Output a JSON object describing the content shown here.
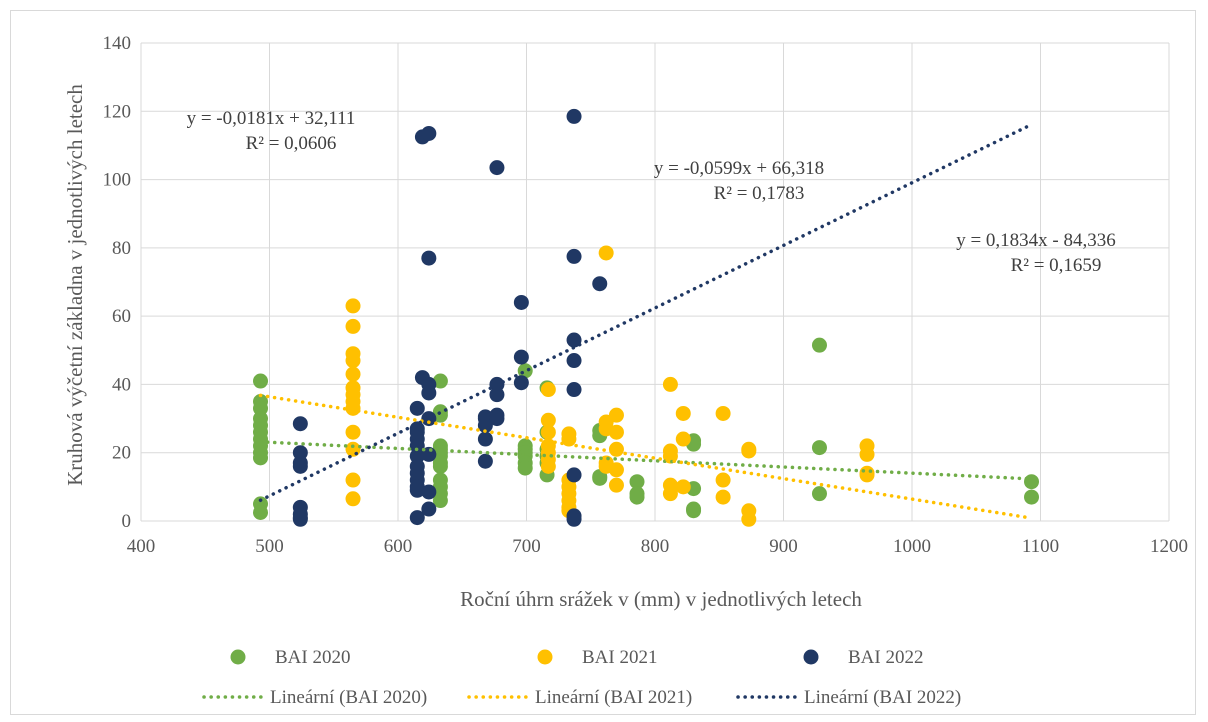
{
  "chart_data": {
    "type": "scatter",
    "title": "",
    "xlabel": "Roční úhrn srážek v (mm) v jednotlivých letech",
    "ylabel": "Kruhová výčetní základna v jednotlivých letech",
    "xlim": [
      400,
      1200
    ],
    "ylim": [
      0,
      140
    ],
    "x_ticks": [
      400,
      500,
      600,
      700,
      800,
      900,
      1000,
      1100,
      1200
    ],
    "y_ticks": [
      0,
      20,
      40,
      60,
      80,
      100,
      120,
      140
    ],
    "grid": "vertical and horizontal major gridlines",
    "legend_position": "bottom",
    "series": [
      {
        "name": "BAI 2020",
        "color": "#70ad47",
        "points": [
          [
            493,
            41
          ],
          [
            493,
            35
          ],
          [
            493,
            33
          ],
          [
            493,
            30
          ],
          [
            493,
            28
          ],
          [
            493,
            26
          ],
          [
            493,
            24
          ],
          [
            493,
            22
          ],
          [
            493,
            20
          ],
          [
            493,
            18.5
          ],
          [
            493,
            5
          ],
          [
            493,
            2.5
          ],
          [
            633,
            41
          ],
          [
            633,
            32
          ],
          [
            633,
            31
          ],
          [
            633,
            22
          ],
          [
            633,
            21
          ],
          [
            633,
            20
          ],
          [
            633,
            19
          ],
          [
            633,
            17
          ],
          [
            633,
            16
          ],
          [
            633,
            12
          ],
          [
            633,
            10
          ],
          [
            633,
            8
          ],
          [
            633,
            6
          ],
          [
            699,
            44
          ],
          [
            699,
            22
          ],
          [
            699,
            21
          ],
          [
            699,
            20
          ],
          [
            699,
            19
          ],
          [
            699,
            17
          ],
          [
            699,
            15.5
          ],
          [
            716,
            39
          ],
          [
            716,
            26
          ],
          [
            716,
            21
          ],
          [
            716,
            19
          ],
          [
            716,
            17
          ],
          [
            716,
            13.5
          ],
          [
            757,
            26.5
          ],
          [
            757,
            25
          ],
          [
            757,
            13
          ],
          [
            757,
            12.5
          ],
          [
            786,
            11.5
          ],
          [
            786,
            8
          ],
          [
            786,
            7
          ],
          [
            830,
            23.5
          ],
          [
            830,
            22.5
          ],
          [
            830,
            9.5
          ],
          [
            830,
            3.5
          ],
          [
            830,
            3
          ],
          [
            928,
            51.5
          ],
          [
            928,
            21.5
          ],
          [
            928,
            8
          ],
          [
            1093,
            11.5
          ],
          [
            1093,
            7
          ]
        ]
      },
      {
        "name": "BAI 2021",
        "color": "#ffc000",
        "points": [
          [
            565,
            63
          ],
          [
            565,
            57
          ],
          [
            565,
            49
          ],
          [
            565,
            47
          ],
          [
            565,
            43
          ],
          [
            565,
            39
          ],
          [
            565,
            37
          ],
          [
            565,
            35
          ],
          [
            565,
            33
          ],
          [
            565,
            26
          ],
          [
            565,
            21
          ],
          [
            565,
            12
          ],
          [
            565,
            6.5
          ],
          [
            717,
            38.5
          ],
          [
            717,
            29.5
          ],
          [
            717,
            26
          ],
          [
            717,
            22
          ],
          [
            717,
            20
          ],
          [
            717,
            18
          ],
          [
            717,
            16
          ],
          [
            733,
            25.5
          ],
          [
            733,
            24
          ],
          [
            733,
            12
          ],
          [
            733,
            10
          ],
          [
            733,
            8
          ],
          [
            733,
            6
          ],
          [
            733,
            4
          ],
          [
            733,
            3
          ],
          [
            762,
            78.5
          ],
          [
            762,
            29
          ],
          [
            762,
            27
          ],
          [
            762,
            17
          ],
          [
            762,
            16
          ],
          [
            770,
            31
          ],
          [
            770,
            26
          ],
          [
            770,
            21
          ],
          [
            770,
            15
          ],
          [
            770,
            10.5
          ],
          [
            812,
            40
          ],
          [
            812,
            20.5
          ],
          [
            812,
            19
          ],
          [
            812,
            10.5
          ],
          [
            812,
            8
          ],
          [
            822,
            31.5
          ],
          [
            822,
            24
          ],
          [
            822,
            10
          ],
          [
            853,
            31.5
          ],
          [
            853,
            12
          ],
          [
            853,
            7
          ],
          [
            873,
            21
          ],
          [
            873,
            20.5
          ],
          [
            873,
            3
          ],
          [
            873,
            0.5
          ],
          [
            965,
            22
          ],
          [
            965,
            19.5
          ],
          [
            965,
            14
          ],
          [
            965,
            13.5
          ]
        ]
      },
      {
        "name": "BAI 2022",
        "color": "#203864",
        "points": [
          [
            524,
            28.5
          ],
          [
            524,
            20
          ],
          [
            524,
            17
          ],
          [
            524,
            16
          ],
          [
            524,
            4
          ],
          [
            524,
            2
          ],
          [
            524,
            1
          ],
          [
            524,
            0.5
          ],
          [
            615,
            33
          ],
          [
            615,
            27
          ],
          [
            615,
            26
          ],
          [
            615,
            24
          ],
          [
            615,
            22
          ],
          [
            615,
            19
          ],
          [
            615,
            16
          ],
          [
            615,
            14
          ],
          [
            615,
            12
          ],
          [
            615,
            10
          ],
          [
            615,
            9
          ],
          [
            615,
            1
          ],
          [
            619,
            112.5
          ],
          [
            619,
            42
          ],
          [
            624,
            113.5
          ],
          [
            624,
            77
          ],
          [
            624,
            40
          ],
          [
            624,
            37.5
          ],
          [
            624,
            30
          ],
          [
            624,
            19.5
          ],
          [
            624,
            8.5
          ],
          [
            624,
            3.5
          ],
          [
            668,
            30.5
          ],
          [
            668,
            30
          ],
          [
            668,
            28
          ],
          [
            668,
            24
          ],
          [
            668,
            17.5
          ],
          [
            677,
            103.5
          ],
          [
            677,
            40
          ],
          [
            677,
            37
          ],
          [
            677,
            31
          ],
          [
            677,
            30
          ],
          [
            696,
            64
          ],
          [
            696,
            48
          ],
          [
            696,
            40.5
          ],
          [
            737,
            118.5
          ],
          [
            737,
            77.5
          ],
          [
            737,
            53
          ],
          [
            737,
            47
          ],
          [
            737,
            38.5
          ],
          [
            737,
            13.5
          ],
          [
            737,
            1.5
          ],
          [
            737,
            0.5
          ],
          [
            757,
            69.5
          ]
        ]
      }
    ],
    "trendlines": [
      {
        "name": "Lineární (BAI 2020)",
        "color": "#70ad47",
        "slope": -0.0181,
        "intercept": 32.111,
        "x_range": [
          493,
          1093
        ],
        "equation": "y = -0,0181x + 32,111",
        "r2": "R² = 0,0606"
      },
      {
        "name": "Lineární (BAI 2021)",
        "color": "#ffc000",
        "slope": -0.0599,
        "intercept": 66.318,
        "x_range": [
          493,
          1093
        ],
        "equation": "y = -0,0599x + 66,318",
        "r2": "R² = 0,1783"
      },
      {
        "name": "Lineární (BAI 2022)",
        "color": "#203864",
        "slope": 0.1834,
        "intercept": -84.336,
        "x_range": [
          493,
          1093
        ],
        "equation": "y = 0,1834x - 84,336",
        "r2": "R² = 0,1659"
      }
    ]
  }
}
